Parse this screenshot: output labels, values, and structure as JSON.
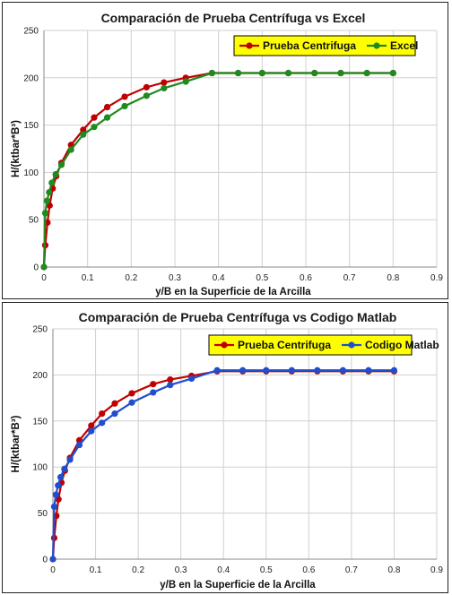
{
  "chart_data": [
    {
      "type": "line",
      "title": "Comparación de Prueba Centrífuga vs Excel",
      "xlabel": "y/B en la Superficie de la Arcilla",
      "ylabel": "H/(ktbar*B³)",
      "xlim": [
        0,
        0.9
      ],
      "ylim": [
        0,
        250
      ],
      "x_ticks": [
        "0",
        "0.1",
        "0.2",
        "0.3",
        "0.4",
        "0.5",
        "0.6",
        "0.7",
        "0.8",
        "0.9"
      ],
      "y_ticks": [
        "0",
        "50",
        "100",
        "150",
        "200",
        "250"
      ],
      "grid": true,
      "legend_position": "top-right",
      "series": [
        {
          "name": "Prueba Centrifuga",
          "color": "#c00000",
          "x": [
            0,
            0.003,
            0.008,
            0.013,
            0.02,
            0.028,
            0.04,
            0.062,
            0.09,
            0.115,
            0.145,
            0.185,
            0.235,
            0.275,
            0.325,
            0.385,
            0.445,
            0.5,
            0.56,
            0.62,
            0.68,
            0.74,
            0.8
          ],
          "y": [
            0,
            23,
            47,
            65,
            83,
            96,
            110,
            129,
            145,
            158,
            169,
            180,
            190,
            195,
            200,
            205,
            205,
            205,
            205,
            205,
            205,
            205,
            205
          ]
        },
        {
          "name": "Excel",
          "color": "#1f8a1f",
          "x": [
            0,
            0.003,
            0.007,
            0.012,
            0.018,
            0.027,
            0.04,
            0.062,
            0.09,
            0.115,
            0.145,
            0.185,
            0.235,
            0.275,
            0.325,
            0.385,
            0.445,
            0.5,
            0.56,
            0.62,
            0.68,
            0.74,
            0.8
          ],
          "y": [
            0,
            57,
            70,
            79,
            89,
            98,
            108,
            124,
            140,
            148,
            158,
            170,
            181,
            189,
            196,
            205,
            205,
            205,
            205,
            205,
            205,
            205,
            205
          ]
        }
      ]
    },
    {
      "type": "line",
      "title": "Comparación de Prueba Centrífuga vs Codigo Matlab",
      "xlabel": "y/B en la Superficie de la Arcilla",
      "ylabel": "H/(ktbar*B³)",
      "xlim": [
        0,
        0.9
      ],
      "ylim": [
        0,
        250
      ],
      "x_ticks": [
        "0",
        "0.1",
        "0.2",
        "0.3",
        "0.4",
        "0.5",
        "0.6",
        "0.7",
        "0.8",
        "0.9"
      ],
      "y_ticks": [
        "0",
        "50",
        "100",
        "150",
        "200",
        "250"
      ],
      "grid": true,
      "legend_position": "top-right",
      "series": [
        {
          "name": "Prueba Centrifuga",
          "color": "#c00000",
          "x": [
            0,
            0.003,
            0.008,
            0.013,
            0.02,
            0.028,
            0.04,
            0.062,
            0.09,
            0.115,
            0.145,
            0.185,
            0.235,
            0.275,
            0.325,
            0.385,
            0.445,
            0.5,
            0.56,
            0.62,
            0.68,
            0.74,
            0.8
          ],
          "y": [
            0,
            23,
            47,
            65,
            83,
            96,
            110,
            129,
            145,
            158,
            169,
            180,
            190,
            195,
            199,
            204,
            204,
            204,
            204,
            204,
            204,
            204,
            204
          ]
        },
        {
          "name": "Codigo Matlab",
          "color": "#1f4fcc",
          "x": [
            0,
            0.003,
            0.007,
            0.012,
            0.018,
            0.027,
            0.04,
            0.062,
            0.09,
            0.115,
            0.145,
            0.185,
            0.235,
            0.275,
            0.325,
            0.385,
            0.445,
            0.5,
            0.56,
            0.62,
            0.68,
            0.74,
            0.8
          ],
          "y": [
            0,
            57,
            70,
            80,
            89,
            98,
            108,
            124,
            139,
            148,
            158,
            170,
            181,
            189,
            196,
            205,
            205,
            205,
            205,
            205,
            205,
            205,
            205
          ]
        }
      ]
    }
  ]
}
